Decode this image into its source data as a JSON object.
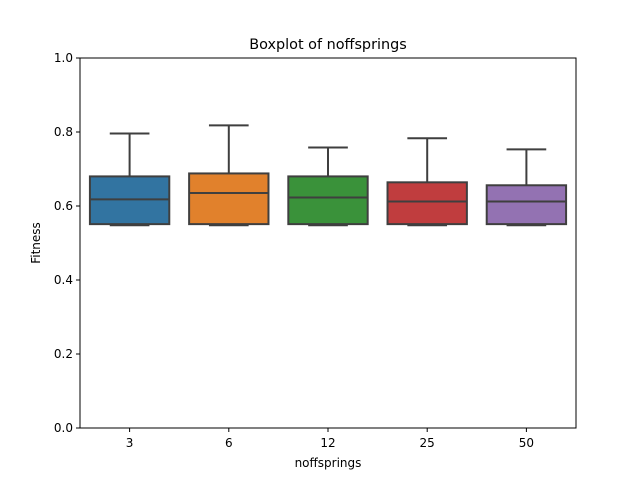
{
  "chart_data": {
    "type": "box",
    "title": "Boxplot of noffsprings",
    "xlabel": "noffsprings",
    "ylabel": "Fitness",
    "ylim": [
      0,
      1.0
    ],
    "yticks": [
      "0.0",
      "0.2",
      "0.4",
      "0.6",
      "0.8",
      "1.0"
    ],
    "grid": false,
    "categories": [
      "3",
      "6",
      "12",
      "25",
      "50"
    ],
    "boxes": [
      {
        "category": "3",
        "whisker_low": 0.548,
        "q1": 0.551,
        "median": 0.618,
        "q3": 0.68,
        "whisker_high": 0.796,
        "color": "#3274a1"
      },
      {
        "category": "6",
        "whisker_low": 0.548,
        "q1": 0.551,
        "median": 0.635,
        "q3": 0.688,
        "whisker_high": 0.818,
        "color": "#e1812c"
      },
      {
        "category": "12",
        "whisker_low": 0.548,
        "q1": 0.551,
        "median": 0.623,
        "q3": 0.68,
        "whisker_high": 0.758,
        "color": "#3a923a"
      },
      {
        "category": "25",
        "whisker_low": 0.548,
        "q1": 0.551,
        "median": 0.612,
        "q3": 0.664,
        "whisker_high": 0.783,
        "color": "#c03d3e"
      },
      {
        "category": "50",
        "whisker_low": 0.548,
        "q1": 0.551,
        "median": 0.612,
        "q3": 0.656,
        "whisker_high": 0.753,
        "color": "#9372b2"
      }
    ]
  }
}
